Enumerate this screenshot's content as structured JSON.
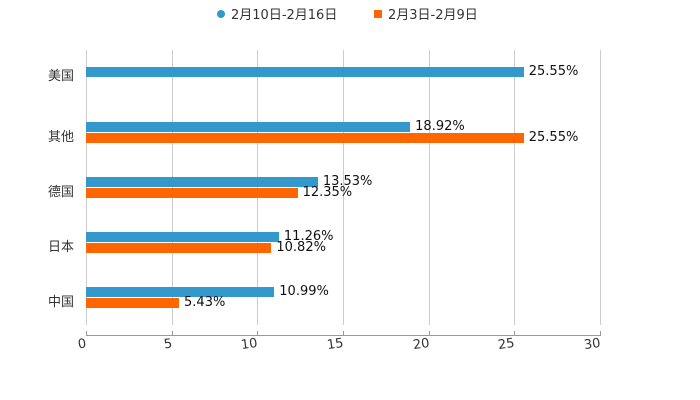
{
  "chart_data": {
    "type": "bar",
    "orientation": "horizontal",
    "title": "",
    "xlabel": "",
    "ylabel": "",
    "xlim": [
      0,
      30
    ],
    "x_ticks": [
      "0",
      "5",
      "10",
      "15",
      "20",
      "25",
      "30"
    ],
    "grid": true,
    "legend_position": "top",
    "categories": [
      "美国",
      "其他",
      "德国",
      "日本",
      "中国"
    ],
    "series": [
      {
        "name": "2月10日-2月16日",
        "color": "#3399cc",
        "values": [
          25.55,
          18.92,
          13.53,
          11.26,
          10.99
        ],
        "labels": [
          "25.55%",
          "18.92%",
          "13.53%",
          "11.26%",
          "10.99%"
        ]
      },
      {
        "name": "2月3日-2月9日",
        "color": "#ff6600",
        "values": [
          null,
          25.55,
          12.35,
          10.82,
          5.43
        ],
        "labels": [
          "",
          "25.55%",
          "12.35%",
          "10.82%",
          "5.43%"
        ]
      }
    ]
  },
  "legend": [
    {
      "label": "2月10日-2月16日",
      "color": "#3399cc",
      "marker": "circle"
    },
    {
      "label": "2月3日-2月9日",
      "color": "#ff6600",
      "marker": "square"
    }
  ]
}
